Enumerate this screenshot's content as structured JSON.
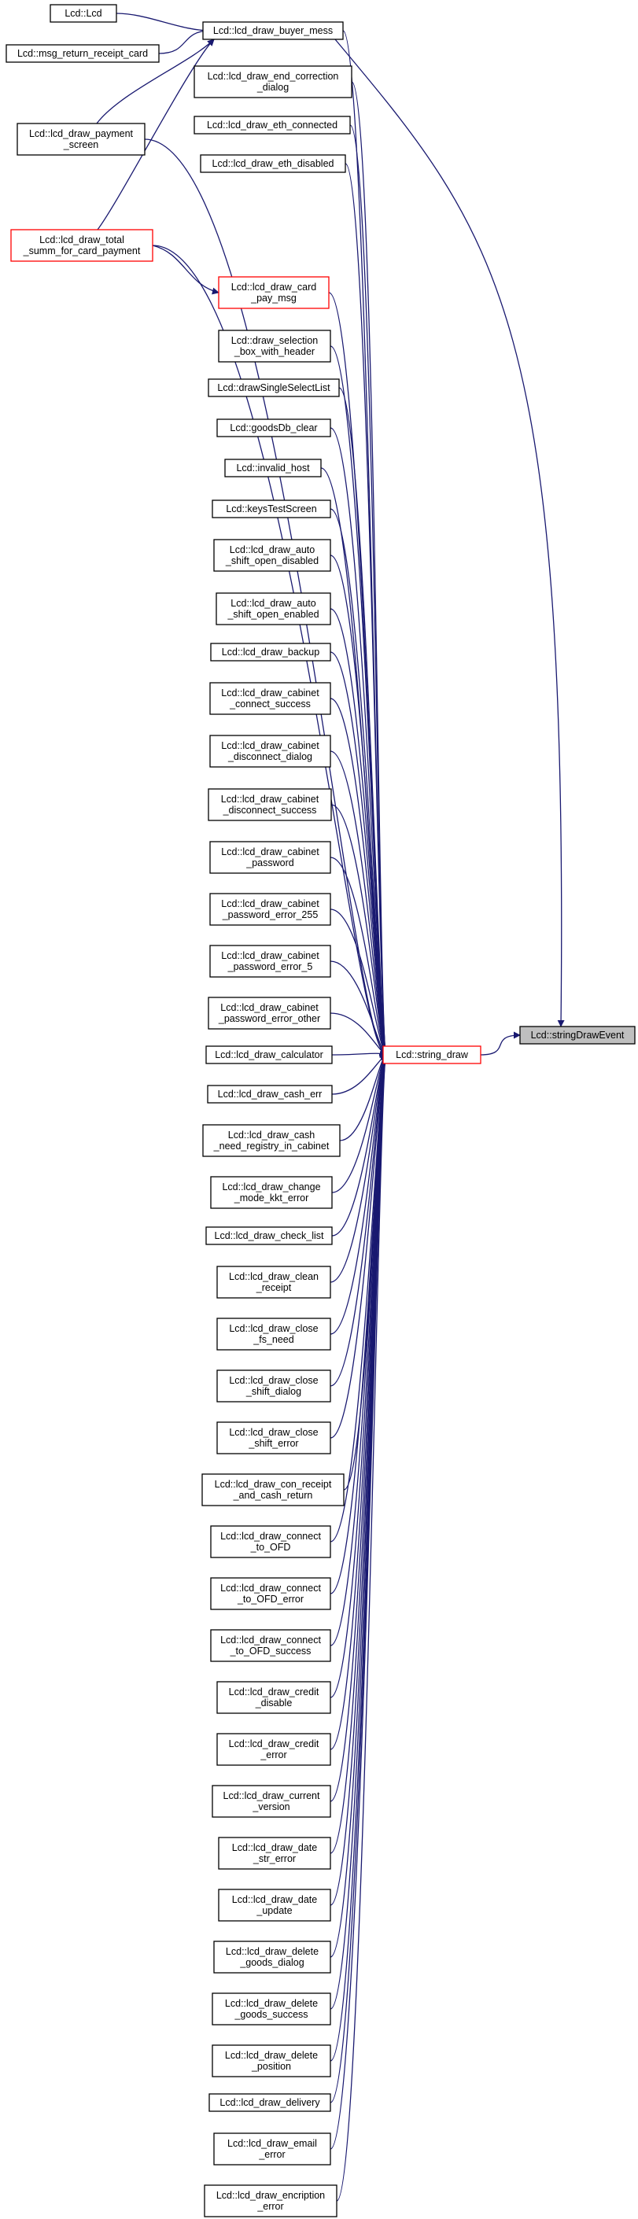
{
  "graph": {
    "edge_color": "#191970",
    "nodes": [
      {
        "id": "lcd",
        "lines": [
          "Lcd::Lcd"
        ],
        "style": "normal"
      },
      {
        "id": "msgret",
        "lines": [
          "Lcd::msg_return_receipt_card"
        ],
        "style": "normal"
      },
      {
        "id": "payscr",
        "lines": [
          "Lcd::lcd_draw_payment",
          "_screen"
        ],
        "style": "normal"
      },
      {
        "id": "total",
        "lines": [
          "Lcd::lcd_draw_total",
          "_summ_for_card_payment"
        ],
        "style": "red"
      },
      {
        "id": "buyer",
        "lines": [
          "Lcd::lcd_draw_buyer_mess"
        ],
        "style": "normal"
      },
      {
        "id": "endcorr",
        "lines": [
          "Lcd::lcd_draw_end_correction",
          "_dialog"
        ],
        "style": "normal"
      },
      {
        "id": "ethcon",
        "lines": [
          "Lcd::lcd_draw_eth_connected"
        ],
        "style": "normal"
      },
      {
        "id": "ethdis",
        "lines": [
          "Lcd::lcd_draw_eth_disabled"
        ],
        "style": "normal"
      },
      {
        "id": "cardpay",
        "lines": [
          "Lcd::lcd_draw_card",
          "_pay_msg"
        ],
        "style": "red"
      },
      {
        "id": "selbox",
        "lines": [
          "Lcd::draw_selection",
          "_box_with_header"
        ],
        "style": "normal"
      },
      {
        "id": "single",
        "lines": [
          "Lcd::drawSingleSelectList"
        ],
        "style": "normal"
      },
      {
        "id": "goodsdb",
        "lines": [
          "Lcd::goodsDb_clear"
        ],
        "style": "normal"
      },
      {
        "id": "invalid",
        "lines": [
          "Lcd::invalid_host"
        ],
        "style": "normal"
      },
      {
        "id": "keys",
        "lines": [
          "Lcd::keysTestScreen"
        ],
        "style": "normal"
      },
      {
        "id": "autodis",
        "lines": [
          "Lcd::lcd_draw_auto",
          "_shift_open_disabled"
        ],
        "style": "normal"
      },
      {
        "id": "autoen",
        "lines": [
          "Lcd::lcd_draw_auto",
          "_shift_open_enabled"
        ],
        "style": "normal"
      },
      {
        "id": "backup",
        "lines": [
          "Lcd::lcd_draw_backup"
        ],
        "style": "normal"
      },
      {
        "id": "cabconn",
        "lines": [
          "Lcd::lcd_draw_cabinet",
          "_connect_success"
        ],
        "style": "normal"
      },
      {
        "id": "cabdisd",
        "lines": [
          "Lcd::lcd_draw_cabinet",
          "_disconnect_dialog"
        ],
        "style": "normal"
      },
      {
        "id": "cabdiss",
        "lines": [
          "Lcd::lcd_draw_cabinet",
          "_disconnect_success"
        ],
        "style": "normal"
      },
      {
        "id": "cabpw",
        "lines": [
          "Lcd::lcd_draw_cabinet",
          "_password"
        ],
        "style": "normal"
      },
      {
        "id": "cabpw255",
        "lines": [
          "Lcd::lcd_draw_cabinet",
          "_password_error_255"
        ],
        "style": "normal"
      },
      {
        "id": "cabpw5",
        "lines": [
          "Lcd::lcd_draw_cabinet",
          "_password_error_5"
        ],
        "style": "normal"
      },
      {
        "id": "cabpwo",
        "lines": [
          "Lcd::lcd_draw_cabinet",
          "_password_error_other"
        ],
        "style": "normal"
      },
      {
        "id": "calc",
        "lines": [
          "Lcd::lcd_draw_calculator"
        ],
        "style": "normal"
      },
      {
        "id": "casherr",
        "lines": [
          "Lcd::lcd_draw_cash_err"
        ],
        "style": "normal"
      },
      {
        "id": "cashneed",
        "lines": [
          "Lcd::lcd_draw_cash",
          "_need_registry_in_cabinet"
        ],
        "style": "normal"
      },
      {
        "id": "chmode",
        "lines": [
          "Lcd::lcd_draw_change",
          "_mode_kkt_error"
        ],
        "style": "normal"
      },
      {
        "id": "checkl",
        "lines": [
          "Lcd::lcd_draw_check_list"
        ],
        "style": "normal"
      },
      {
        "id": "clean",
        "lines": [
          "Lcd::lcd_draw_clean",
          "_receipt"
        ],
        "style": "normal"
      },
      {
        "id": "closefs",
        "lines": [
          "Lcd::lcd_draw_close",
          "_fs_need"
        ],
        "style": "normal"
      },
      {
        "id": "closesd",
        "lines": [
          "Lcd::lcd_draw_close",
          "_shift_dialog"
        ],
        "style": "normal"
      },
      {
        "id": "closese",
        "lines": [
          "Lcd::lcd_draw_close",
          "_shift_error"
        ],
        "style": "normal"
      },
      {
        "id": "conrec",
        "lines": [
          "Lcd::lcd_draw_con_receipt",
          "_and_cash_return"
        ],
        "style": "normal"
      },
      {
        "id": "ofd",
        "lines": [
          "Lcd::lcd_draw_connect",
          "_to_OFD"
        ],
        "style": "normal"
      },
      {
        "id": "ofderr",
        "lines": [
          "Lcd::lcd_draw_connect",
          "_to_OFD_error"
        ],
        "style": "normal"
      },
      {
        "id": "ofdsuc",
        "lines": [
          "Lcd::lcd_draw_connect",
          "_to_OFD_success"
        ],
        "style": "normal"
      },
      {
        "id": "creddis",
        "lines": [
          "Lcd::lcd_draw_credit",
          "_disable"
        ],
        "style": "normal"
      },
      {
        "id": "crederr",
        "lines": [
          "Lcd::lcd_draw_credit",
          "_error"
        ],
        "style": "normal"
      },
      {
        "id": "curver",
        "lines": [
          "Lcd::lcd_draw_current",
          "_version"
        ],
        "style": "normal"
      },
      {
        "id": "datestr",
        "lines": [
          "Lcd::lcd_draw_date",
          "_str_error"
        ],
        "style": "normal"
      },
      {
        "id": "dateupd",
        "lines": [
          "Lcd::lcd_draw_date",
          "_update"
        ],
        "style": "normal"
      },
      {
        "id": "delgd",
        "lines": [
          "Lcd::lcd_draw_delete",
          "_goods_dialog"
        ],
        "style": "normal"
      },
      {
        "id": "delgs",
        "lines": [
          "Lcd::lcd_draw_delete",
          "_goods_success"
        ],
        "style": "normal"
      },
      {
        "id": "delpos",
        "lines": [
          "Lcd::lcd_draw_delete",
          "_position"
        ],
        "style": "normal"
      },
      {
        "id": "delivery",
        "lines": [
          "Lcd::lcd_draw_delivery"
        ],
        "style": "normal"
      },
      {
        "id": "email",
        "lines": [
          "Lcd::lcd_draw_email",
          "_error"
        ],
        "style": "normal"
      },
      {
        "id": "encr",
        "lines": [
          "Lcd::lcd_draw_encription",
          "_error"
        ],
        "style": "normal"
      },
      {
        "id": "strdraw",
        "lines": [
          "Lcd::string_draw"
        ],
        "style": "red"
      },
      {
        "id": "root",
        "lines": [
          "Lcd::stringDrawEvent"
        ],
        "style": "root"
      }
    ],
    "edges": [
      [
        "lcd",
        "buyer"
      ],
      [
        "msgret",
        "buyer"
      ],
      [
        "payscr",
        "buyer"
      ],
      [
        "total",
        "buyer"
      ],
      [
        "total",
        "cardpay"
      ],
      [
        "buyer",
        "strdraw"
      ],
      [
        "buyer",
        "root"
      ],
      [
        "endcorr",
        "strdraw"
      ],
      [
        "ethcon",
        "strdraw"
      ],
      [
        "ethdis",
        "strdraw"
      ],
      [
        "payscr",
        "strdraw"
      ],
      [
        "total",
        "strdraw"
      ],
      [
        "cardpay",
        "strdraw"
      ],
      [
        "selbox",
        "strdraw"
      ],
      [
        "single",
        "strdraw"
      ],
      [
        "goodsdb",
        "strdraw"
      ],
      [
        "invalid",
        "strdraw"
      ],
      [
        "keys",
        "strdraw"
      ],
      [
        "autodis",
        "strdraw"
      ],
      [
        "autoen",
        "strdraw"
      ],
      [
        "backup",
        "strdraw"
      ],
      [
        "cabconn",
        "strdraw"
      ],
      [
        "cabdisd",
        "strdraw"
      ],
      [
        "cabdiss",
        "strdraw"
      ],
      [
        "cabpw",
        "strdraw"
      ],
      [
        "cabpw255",
        "strdraw"
      ],
      [
        "cabpw5",
        "strdraw"
      ],
      [
        "cabpwo",
        "strdraw"
      ],
      [
        "calc",
        "strdraw"
      ],
      [
        "casherr",
        "strdraw"
      ],
      [
        "cashneed",
        "strdraw"
      ],
      [
        "chmode",
        "strdraw"
      ],
      [
        "checkl",
        "strdraw"
      ],
      [
        "clean",
        "strdraw"
      ],
      [
        "closefs",
        "strdraw"
      ],
      [
        "closesd",
        "strdraw"
      ],
      [
        "closese",
        "strdraw"
      ],
      [
        "conrec",
        "strdraw"
      ],
      [
        "ofd",
        "strdraw"
      ],
      [
        "ofderr",
        "strdraw"
      ],
      [
        "ofdsuc",
        "strdraw"
      ],
      [
        "creddis",
        "strdraw"
      ],
      [
        "crederr",
        "strdraw"
      ],
      [
        "curver",
        "strdraw"
      ],
      [
        "datestr",
        "strdraw"
      ],
      [
        "dateupd",
        "strdraw"
      ],
      [
        "delgd",
        "strdraw"
      ],
      [
        "delgs",
        "strdraw"
      ],
      [
        "delpos",
        "strdraw"
      ],
      [
        "delivery",
        "strdraw"
      ],
      [
        "email",
        "strdraw"
      ],
      [
        "encr",
        "strdraw"
      ],
      [
        "strdraw",
        "root"
      ]
    ]
  }
}
